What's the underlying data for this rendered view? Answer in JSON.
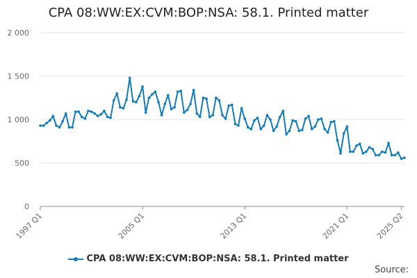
{
  "chart_title": "CPA 08:WW:EX:CVM:BOP:NSA: 58.1. Printed matter",
  "source_label": "Source:",
  "colors": {
    "series": "#0f7bbb",
    "grid": "#e6e6e6",
    "axis": "#888888"
  },
  "chart_data": {
    "type": "line",
    "title": "CPA 08:WW:EX:CVM:BOP:NSA: 58.1. Printed matter",
    "xlabel": "",
    "ylabel": "",
    "ylim": [
      0,
      2000
    ],
    "yticks": [
      0,
      500,
      1000,
      1500,
      2000
    ],
    "ytick_labels": [
      "0",
      "500",
      "1 000",
      "1 500",
      "2 000"
    ],
    "xticks": [
      "1997 Q1",
      "2005 Q1",
      "2013 Q1",
      "2021 Q1",
      "2025 Q2"
    ],
    "x_start": "1997 Q1",
    "x_end": "2025 Q2",
    "legend_position": "bottom",
    "grid": true,
    "series": [
      {
        "name": "CPA 08:WW:EX:CVM:BOP:NSA: 58.1. Printed matter",
        "values": [
          930,
          930,
          960,
          990,
          1040,
          930,
          910,
          980,
          1070,
          910,
          910,
          1090,
          1090,
          1030,
          1010,
          1100,
          1090,
          1070,
          1040,
          1060,
          1100,
          1030,
          1020,
          1220,
          1300,
          1140,
          1130,
          1230,
          1480,
          1210,
          1200,
          1270,
          1380,
          1080,
          1250,
          1290,
          1320,
          1200,
          1050,
          1180,
          1280,
          1120,
          1140,
          1320,
          1330,
          1080,
          1110,
          1180,
          1340,
          1070,
          1030,
          1250,
          1240,
          1030,
          1050,
          1250,
          1220,
          1050,
          1010,
          1160,
          1170,
          950,
          930,
          1130,
          1010,
          910,
          890,
          990,
          1020,
          890,
          930,
          1050,
          1000,
          870,
          920,
          1030,
          1100,
          830,
          870,
          990,
          980,
          870,
          880,
          1010,
          1040,
          890,
          920,
          1000,
          1010,
          890,
          850,
          970,
          980,
          760,
          610,
          840,
          920,
          630,
          630,
          700,
          720,
          610,
          630,
          680,
          660,
          590,
          590,
          630,
          620,
          730,
          590,
          590,
          620,
          550,
          560
        ]
      }
    ]
  }
}
